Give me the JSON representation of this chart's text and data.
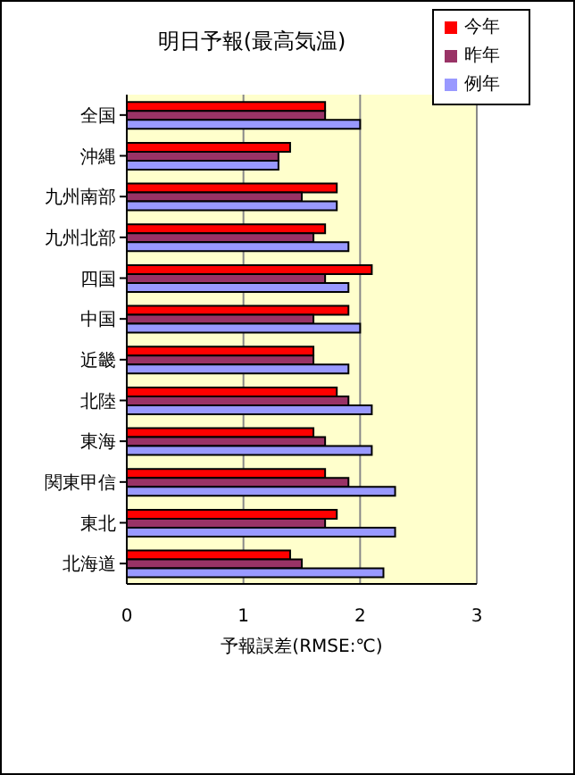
{
  "chart_data": {
    "type": "bar",
    "orientation": "horizontal",
    "title": "明日予報(最高気温)",
    "xlabel": "予報誤差(RMSE:℃)",
    "categories": [
      "全国",
      "沖縄",
      "九州南部",
      "九州北部",
      "四国",
      "中国",
      "近畿",
      "北陸",
      "東海",
      "関東甲信",
      "東北",
      "北海道"
    ],
    "series": [
      {
        "name": "今年",
        "color": "#ff0000",
        "values": [
          1.7,
          1.4,
          1.8,
          1.7,
          2.1,
          1.9,
          1.6,
          1.8,
          1.6,
          1.7,
          1.8,
          1.4
        ]
      },
      {
        "name": "昨年",
        "color": "#993366",
        "values": [
          1.7,
          1.3,
          1.5,
          1.6,
          1.7,
          1.6,
          1.6,
          1.9,
          1.7,
          1.9,
          1.7,
          1.5
        ]
      },
      {
        "name": "例年",
        "color": "#9999ff",
        "values": [
          2.0,
          1.3,
          1.8,
          1.9,
          1.9,
          2.0,
          1.9,
          2.1,
          2.1,
          2.3,
          2.3,
          2.2
        ]
      }
    ],
    "xlim": [
      0,
      3
    ],
    "xticks": [
      0,
      1,
      2,
      3
    ],
    "grid": "x",
    "legend": "top right"
  }
}
